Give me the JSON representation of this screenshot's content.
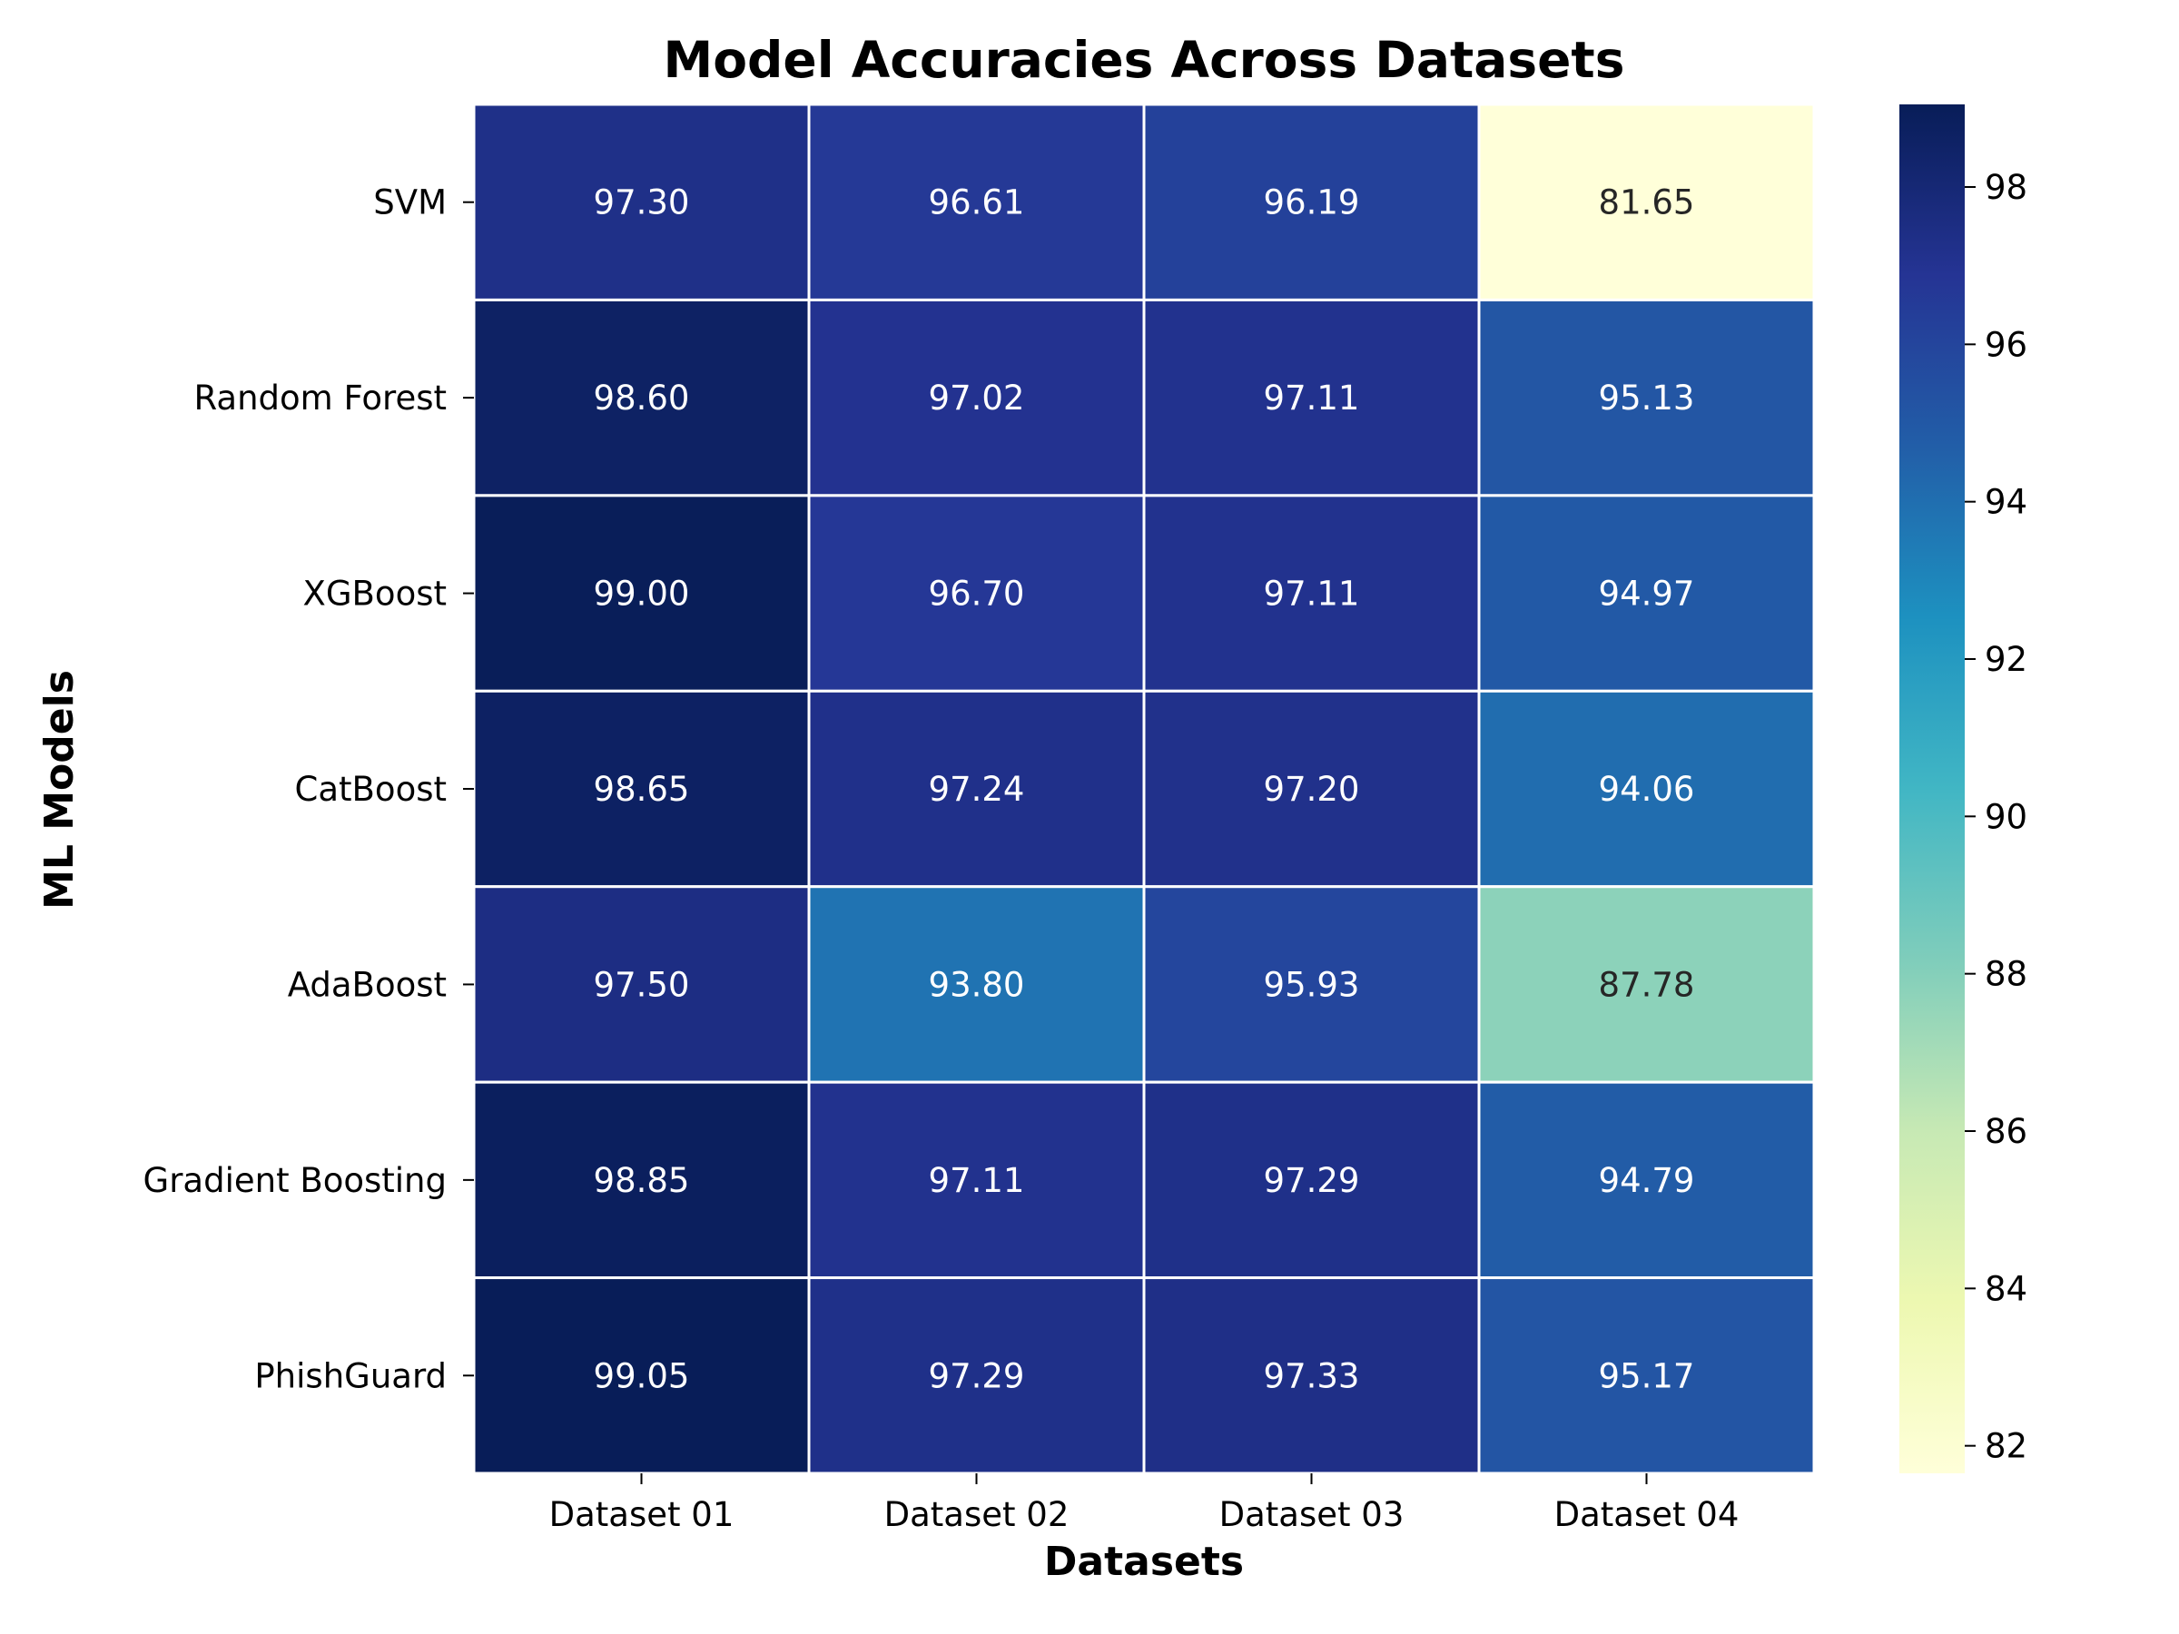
{
  "chart_data": {
    "type": "heatmap",
    "title": "Model Accuracies Across Datasets",
    "xlabel": "Datasets",
    "ylabel": "ML Models",
    "x_categories": [
      "Dataset 01",
      "Dataset 02",
      "Dataset 03",
      "Dataset 04"
    ],
    "y_categories": [
      "SVM",
      "Random Forest",
      "XGBoost",
      "CatBoost",
      "AdaBoost",
      "Gradient Boosting",
      "PhishGuard"
    ],
    "values": [
      [
        97.3,
        96.61,
        96.19,
        81.65
      ],
      [
        98.6,
        97.02,
        97.11,
        95.13
      ],
      [
        99.0,
        96.7,
        97.11,
        94.97
      ],
      [
        98.65,
        97.24,
        97.2,
        94.06
      ],
      [
        97.5,
        93.8,
        95.93,
        87.78
      ],
      [
        98.85,
        97.11,
        97.29,
        94.79
      ],
      [
        99.05,
        97.29,
        97.33,
        95.17
      ]
    ],
    "value_format": "2 decimals",
    "colormap": "YlGnBu",
    "color_range": [
      81.65,
      99.05
    ],
    "colorbar_ticks": [
      82,
      84,
      86,
      88,
      90,
      92,
      94,
      96,
      98
    ],
    "cell_gridlines": "white",
    "annotations": true
  },
  "colors": {
    "colormap_stops": [
      "#ffffd9",
      "#edf8b1",
      "#c7e9b4",
      "#7fcdbb",
      "#41b6c4",
      "#1d91c0",
      "#225ea8",
      "#253494",
      "#081d58"
    ],
    "annotation_light": "#ffffff",
    "annotation_dark": "#262626",
    "gridline": "#ffffff"
  }
}
